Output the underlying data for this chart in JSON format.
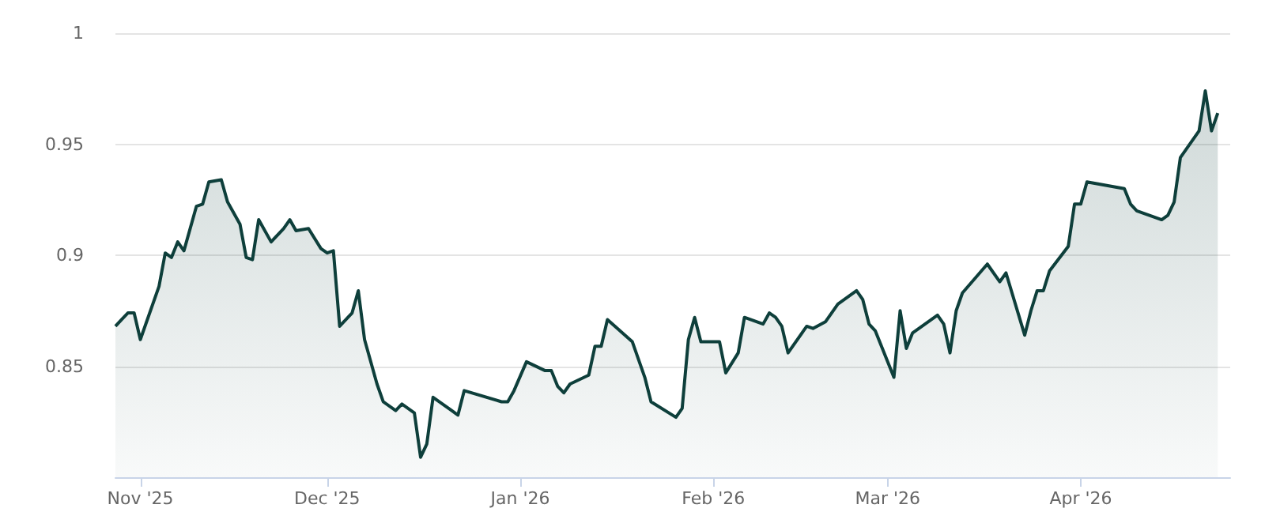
{
  "chart_data": {
    "type": "area",
    "x": [
      "2025-10-28",
      "2025-10-29",
      "2025-10-30",
      "2025-10-31",
      "2025-11-01",
      "2025-11-04",
      "2025-11-05",
      "2025-11-06",
      "2025-11-07",
      "2025-11-08",
      "2025-11-10",
      "2025-11-11",
      "2025-11-12",
      "2025-11-14",
      "2025-11-15",
      "2025-11-17",
      "2025-11-18",
      "2025-11-19",
      "2025-11-20",
      "2025-11-22",
      "2025-11-24",
      "2025-11-25",
      "2025-11-26",
      "2025-11-28",
      "2025-11-30",
      "2025-12-01",
      "2025-12-02",
      "2025-12-03",
      "2025-12-05",
      "2025-12-06",
      "2025-12-07",
      "2025-12-09",
      "2025-12-10",
      "2025-12-12",
      "2025-12-13",
      "2025-12-15",
      "2025-12-16",
      "2025-12-17",
      "2025-12-18",
      "2025-12-21",
      "2025-12-22",
      "2025-12-23",
      "2025-12-29",
      "2025-12-30",
      "2025-12-31",
      "2026-01-02",
      "2026-01-05",
      "2026-01-06",
      "2026-01-07",
      "2026-01-08",
      "2026-01-09",
      "2026-01-12",
      "2026-01-13",
      "2026-01-14",
      "2026-01-15",
      "2026-01-19",
      "2026-01-21",
      "2026-01-22",
      "2026-01-26",
      "2026-01-27",
      "2026-01-28",
      "2026-01-29",
      "2026-01-30",
      "2026-02-02",
      "2026-02-03",
      "2026-02-05",
      "2026-02-06",
      "2026-02-09",
      "2026-02-10",
      "2026-02-11",
      "2026-02-12",
      "2026-02-13",
      "2026-02-16",
      "2026-02-17",
      "2026-02-19",
      "2026-02-21",
      "2026-02-24",
      "2026-02-25",
      "2026-02-26",
      "2026-02-27",
      "2026-03-02",
      "2026-03-03",
      "2026-03-04",
      "2026-03-05",
      "2026-03-09",
      "2026-03-10",
      "2026-03-11",
      "2026-03-12",
      "2026-03-13",
      "2026-03-17",
      "2026-03-19",
      "2026-03-20",
      "2026-03-23",
      "2026-03-24",
      "2026-03-25",
      "2026-03-26",
      "2026-03-27",
      "2026-03-30",
      "2026-03-31",
      "2026-04-01",
      "2026-04-02",
      "2026-04-08",
      "2026-04-09",
      "2026-04-10",
      "2026-04-14",
      "2026-04-15",
      "2026-04-16",
      "2026-04-17",
      "2026-04-20",
      "2026-04-21",
      "2026-04-22",
      "2026-04-23"
    ],
    "series": [
      {
        "color": "#0e3f3b",
        "values": [
          0.868,
          0.871,
          0.874,
          0.874,
          0.862,
          0.886,
          0.901,
          0.899,
          0.906,
          0.902,
          0.922,
          0.923,
          0.933,
          0.934,
          0.924,
          0.914,
          0.899,
          0.898,
          0.916,
          0.906,
          0.912,
          0.916,
          0.911,
          0.912,
          0.903,
          0.901,
          0.902,
          0.868,
          0.874,
          0.884,
          0.862,
          0.842,
          0.834,
          0.83,
          0.833,
          0.829,
          0.809,
          0.815,
          0.836,
          0.83,
          0.828,
          0.839,
          0.834,
          0.834,
          0.839,
          0.852,
          0.848,
          0.848,
          0.841,
          0.838,
          0.842,
          0.846,
          0.859,
          0.859,
          0.871,
          0.861,
          0.845,
          0.834,
          0.827,
          0.831,
          0.862,
          0.872,
          0.861,
          0.861,
          0.847,
          0.856,
          0.872,
          0.869,
          0.874,
          0.872,
          0.868,
          0.856,
          0.868,
          0.867,
          0.87,
          0.878,
          0.884,
          0.88,
          0.869,
          0.866,
          0.845,
          0.875,
          0.858,
          0.865,
          0.873,
          0.869,
          0.856,
          0.875,
          0.883,
          0.896,
          0.888,
          0.892,
          0.864,
          0.875,
          0.884,
          0.884,
          0.893,
          0.904,
          0.923,
          0.923,
          0.933,
          0.93,
          0.923,
          0.92,
          0.916,
          0.918,
          0.924,
          0.944,
          0.956,
          0.974,
          0.956,
          0.964
        ]
      }
    ],
    "xlim": [
      "2025-10-28",
      "2026-04-25"
    ],
    "xticks": [
      {
        "value": "2025-11-01",
        "label": "Nov '25"
      },
      {
        "value": "2025-12-01",
        "label": "Dec '25"
      },
      {
        "value": "2026-01-01",
        "label": "Jan '26"
      },
      {
        "value": "2026-02-01",
        "label": "Feb '26"
      },
      {
        "value": "2026-03-01",
        "label": "Mar '26"
      },
      {
        "value": "2026-04-01",
        "label": "Apr '26"
      }
    ],
    "ylim": [
      0.8,
      1
    ],
    "yticks": [
      0.85,
      0.9,
      0.95,
      1
    ],
    "grid": "y",
    "marker": "none",
    "line_style": "solid"
  }
}
